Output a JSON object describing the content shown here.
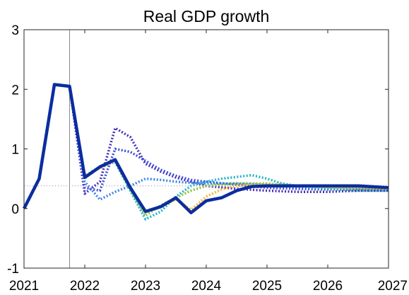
{
  "chart_data": {
    "type": "line",
    "title": "Real GDP growth",
    "xlabel": "",
    "ylabel": "",
    "xlim": [
      2021,
      2027
    ],
    "ylim": [
      -1,
      3
    ],
    "x_ticks": [
      "2021",
      "2022",
      "2023",
      "2024",
      "2025",
      "2026",
      "2027"
    ],
    "y_ticks": [
      "-1",
      "0",
      "1",
      "2",
      "3"
    ],
    "grid": false,
    "vertical_marker_x": 2021.75,
    "reference_line_y": 0.38,
    "series": [
      {
        "style": "solid",
        "color": "#0b2d9e",
        "points": [
          [
            2021.0,
            0.0
          ],
          [
            2021.25,
            0.5
          ],
          [
            2021.5,
            2.08
          ],
          [
            2021.75,
            2.05
          ],
          [
            2022.0,
            0.52
          ],
          [
            2022.25,
            0.7
          ],
          [
            2022.5,
            0.82
          ],
          [
            2022.75,
            0.35
          ],
          [
            2023.0,
            -0.05
          ],
          [
            2023.25,
            0.03
          ],
          [
            2023.5,
            0.18
          ],
          [
            2023.75,
            -0.07
          ],
          [
            2024.0,
            0.13
          ],
          [
            2024.25,
            0.18
          ],
          [
            2024.5,
            0.3
          ],
          [
            2024.75,
            0.37
          ],
          [
            2025.0,
            0.38
          ],
          [
            2025.5,
            0.38
          ],
          [
            2026.0,
            0.38
          ],
          [
            2026.5,
            0.38
          ],
          [
            2027.0,
            0.35
          ]
        ]
      },
      {
        "style": "dotted",
        "color": "#4a2db8",
        "points": [
          [
            2021.75,
            2.05
          ],
          [
            2022.0,
            0.25
          ],
          [
            2022.25,
            0.45
          ],
          [
            2022.5,
            1.35
          ],
          [
            2022.75,
            1.2
          ],
          [
            2023.0,
            0.75
          ],
          [
            2023.25,
            0.62
          ],
          [
            2023.5,
            0.52
          ],
          [
            2023.75,
            0.45
          ],
          [
            2024.0,
            0.38
          ],
          [
            2024.5,
            0.33
          ],
          [
            2025.0,
            0.3
          ],
          [
            2025.5,
            0.28
          ],
          [
            2026.0,
            0.28
          ],
          [
            2026.5,
            0.3
          ],
          [
            2027.0,
            0.3
          ]
        ]
      },
      {
        "style": "dotted",
        "color": "#3a50d8",
        "points": [
          [
            2021.75,
            2.05
          ],
          [
            2022.0,
            0.35
          ],
          [
            2022.25,
            0.3
          ],
          [
            2022.5,
            1.0
          ],
          [
            2022.75,
            0.95
          ],
          [
            2023.0,
            0.8
          ],
          [
            2023.25,
            0.65
          ],
          [
            2023.5,
            0.55
          ],
          [
            2023.75,
            0.48
          ],
          [
            2024.0,
            0.45
          ],
          [
            2024.5,
            0.4
          ],
          [
            2025.0,
            0.35
          ],
          [
            2025.5,
            0.33
          ],
          [
            2026.0,
            0.32
          ],
          [
            2026.5,
            0.33
          ],
          [
            2027.0,
            0.33
          ]
        ]
      },
      {
        "style": "dotted",
        "color": "#3f86e6",
        "points": [
          [
            2021.75,
            2.05
          ],
          [
            2022.0,
            0.45
          ],
          [
            2022.25,
            0.15
          ],
          [
            2022.5,
            0.28
          ],
          [
            2022.75,
            0.38
          ],
          [
            2023.0,
            0.5
          ],
          [
            2023.25,
            0.48
          ],
          [
            2023.5,
            0.45
          ],
          [
            2023.75,
            0.43
          ],
          [
            2024.0,
            0.42
          ],
          [
            2024.5,
            0.42
          ],
          [
            2025.0,
            0.4
          ],
          [
            2025.5,
            0.37
          ],
          [
            2026.0,
            0.35
          ],
          [
            2026.5,
            0.34
          ],
          [
            2027.0,
            0.33
          ]
        ]
      },
      {
        "style": "dotted",
        "color": "#21b5c8",
        "points": [
          [
            2021.75,
            2.05
          ],
          [
            2022.0,
            0.55
          ],
          [
            2022.25,
            0.7
          ],
          [
            2022.5,
            0.78
          ],
          [
            2022.75,
            0.3
          ],
          [
            2023.0,
            -0.18
          ],
          [
            2023.25,
            -0.05
          ],
          [
            2023.5,
            0.2
          ],
          [
            2023.75,
            0.38
          ],
          [
            2024.0,
            0.45
          ],
          [
            2024.25,
            0.5
          ],
          [
            2024.5,
            0.53
          ],
          [
            2024.75,
            0.56
          ],
          [
            2025.0,
            0.5
          ],
          [
            2025.25,
            0.42
          ],
          [
            2025.5,
            0.38
          ],
          [
            2026.0,
            0.33
          ],
          [
            2026.5,
            0.3
          ],
          [
            2027.0,
            0.3
          ]
        ]
      },
      {
        "style": "dotted",
        "color": "#8cc43c",
        "points": [
          [
            2021.75,
            2.05
          ],
          [
            2022.0,
            0.55
          ],
          [
            2022.25,
            0.68
          ],
          [
            2022.5,
            0.8
          ],
          [
            2022.75,
            0.32
          ],
          [
            2023.0,
            -0.12
          ],
          [
            2023.25,
            0.05
          ],
          [
            2023.5,
            0.18
          ],
          [
            2023.75,
            0.3
          ],
          [
            2024.0,
            0.38
          ],
          [
            2024.5,
            0.42
          ],
          [
            2025.0,
            0.42
          ],
          [
            2025.5,
            0.38
          ],
          [
            2026.0,
            0.36
          ],
          [
            2026.5,
            0.35
          ],
          [
            2027.0,
            0.34
          ]
        ]
      },
      {
        "style": "dotted",
        "color": "#f5b82e",
        "points": [
          [
            2021.75,
            2.05
          ],
          [
            2022.0,
            0.55
          ],
          [
            2022.25,
            0.68
          ],
          [
            2022.5,
            0.8
          ],
          [
            2022.75,
            0.35
          ],
          [
            2023.0,
            -0.05
          ],
          [
            2023.25,
            0.03
          ],
          [
            2023.5,
            0.15
          ],
          [
            2023.75,
            -0.02
          ],
          [
            2024.0,
            0.2
          ],
          [
            2024.25,
            0.32
          ],
          [
            2024.5,
            0.38
          ],
          [
            2025.0,
            0.4
          ],
          [
            2025.5,
            0.38
          ],
          [
            2026.0,
            0.36
          ],
          [
            2026.5,
            0.35
          ],
          [
            2027.0,
            0.33
          ]
        ]
      }
    ]
  }
}
